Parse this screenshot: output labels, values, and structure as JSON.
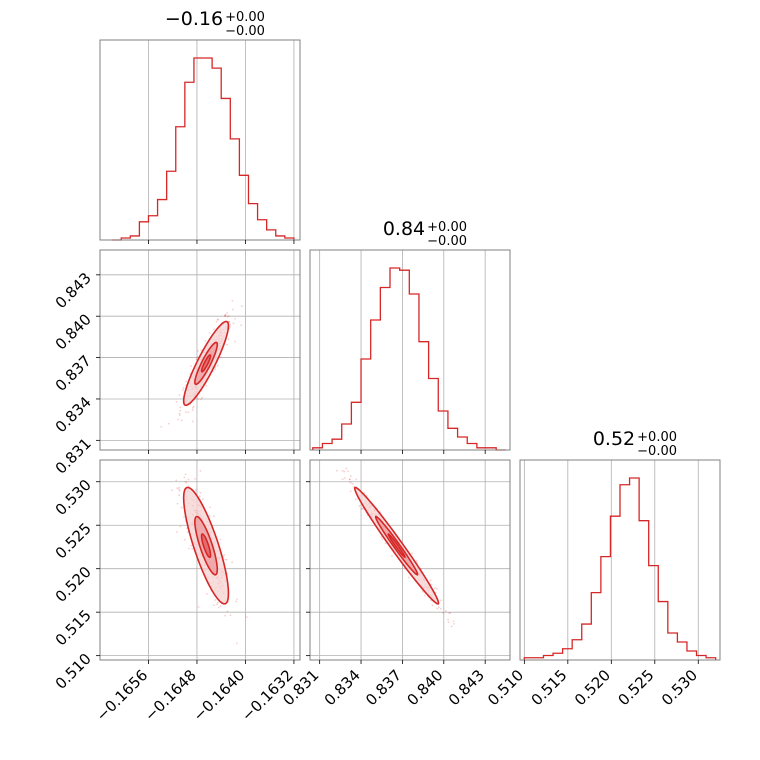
{
  "colors": {
    "series": "#d62728",
    "grid": "#b0b0b0",
    "frame": "#000000",
    "fill_outer": "#f6d2d2",
    "fill_mid": "#ec9a9b",
    "fill_inner": "#e05a5b"
  },
  "titles": [
    {
      "main": "−0.16",
      "sup": "+0.00",
      "sub": "−0.00"
    },
    {
      "main": "0.84",
      "sup": "+0.00",
      "sub": "−0.00"
    },
    {
      "main": "0.52",
      "sup": "+0.00",
      "sub": "−0.00"
    }
  ],
  "chart_data": {
    "type": "corner",
    "grid": true,
    "parameters": [
      {
        "range": [
          -0.1664,
          -0.1631
        ],
        "ticks": [
          -0.1656,
          -0.1648,
          -0.164,
          -0.1632
        ],
        "tick_labels": [
          "−0.1656",
          "−0.1648",
          "−0.1640",
          "−0.1632"
        ]
      },
      {
        "range": [
          0.8303,
          0.8448
        ],
        "ticks": [
          0.831,
          0.834,
          0.837,
          0.84,
          0.843
        ],
        "tick_labels": [
          "0.831",
          "0.834",
          "0.837",
          "0.840",
          "0.843"
        ]
      },
      {
        "range": [
          0.5095,
          0.5325
        ],
        "ticks": [
          0.51,
          0.515,
          0.52,
          0.525,
          0.53
        ],
        "tick_labels": [
          "0.510",
          "0.515",
          "0.520",
          "0.525",
          "0.530"
        ]
      }
    ],
    "histograms": [
      {
        "edges": [
          -0.1662,
          -0.16605,
          -0.1659,
          -0.16575,
          -0.1656,
          -0.16545,
          -0.1653,
          -0.16515,
          -0.165,
          -0.16485,
          -0.1647,
          -0.16455,
          -0.1644,
          -0.16425,
          -0.1641,
          -0.16395,
          -0.1638,
          -0.16365,
          -0.1635,
          -0.16335,
          -0.1632
        ],
        "counts": [
          0,
          1,
          2,
          9,
          12,
          20,
          34,
          56,
          78,
          90,
          90,
          85,
          70,
          50,
          32,
          18,
          10,
          5,
          2,
          1
        ]
      },
      {
        "edges": [
          0.8305,
          0.8312,
          0.8319,
          0.8326,
          0.8333,
          0.834,
          0.8347,
          0.8354,
          0.8361,
          0.8368,
          0.8375,
          0.8382,
          0.8389,
          0.8396,
          0.8403,
          0.841,
          0.8417,
          0.8424,
          0.8431,
          0.8438,
          0.8445
        ],
        "counts": [
          1,
          3,
          5,
          12,
          22,
          42,
          60,
          75,
          84,
          83,
          72,
          50,
          33,
          18,
          10,
          6,
          3,
          1,
          1,
          0
        ]
      },
      {
        "edges": [
          0.51,
          0.5111,
          0.5122,
          0.5133,
          0.5144,
          0.5155,
          0.5166,
          0.5177,
          0.5188,
          0.5199,
          0.521,
          0.5221,
          0.5232,
          0.5243,
          0.5254,
          0.5265,
          0.5276,
          0.5287,
          0.5298,
          0.5309,
          0.532
        ],
        "counts": [
          1,
          1,
          2,
          3,
          5,
          9,
          16,
          30,
          46,
          64,
          78,
          81,
          62,
          42,
          26,
          12,
          8,
          4,
          2,
          1
        ]
      }
    ],
    "pairs": [
      {
        "x_param": 0,
        "y_param": 1,
        "center": [
          -0.16465,
          0.83658
        ],
        "sigma": [
          0.000185,
          0.00152
        ],
        "correlation": 0.9,
        "contour_levels": [
          0.4,
          1.0,
          2.0
        ]
      },
      {
        "x_param": 0,
        "y_param": 2,
        "center": [
          -0.16465,
          0.52265
        ],
        "sigma": [
          0.000185,
          0.00335
        ],
        "correlation": -0.82,
        "contour_levels": [
          0.4,
          1.0,
          2.0
        ]
      },
      {
        "x_param": 1,
        "y_param": 2,
        "center": [
          0.83658,
          0.52265
        ],
        "sigma": [
          0.00152,
          0.00335
        ],
        "correlation": -0.985,
        "contour_levels": [
          0.4,
          1.0,
          2.0
        ]
      }
    ]
  }
}
